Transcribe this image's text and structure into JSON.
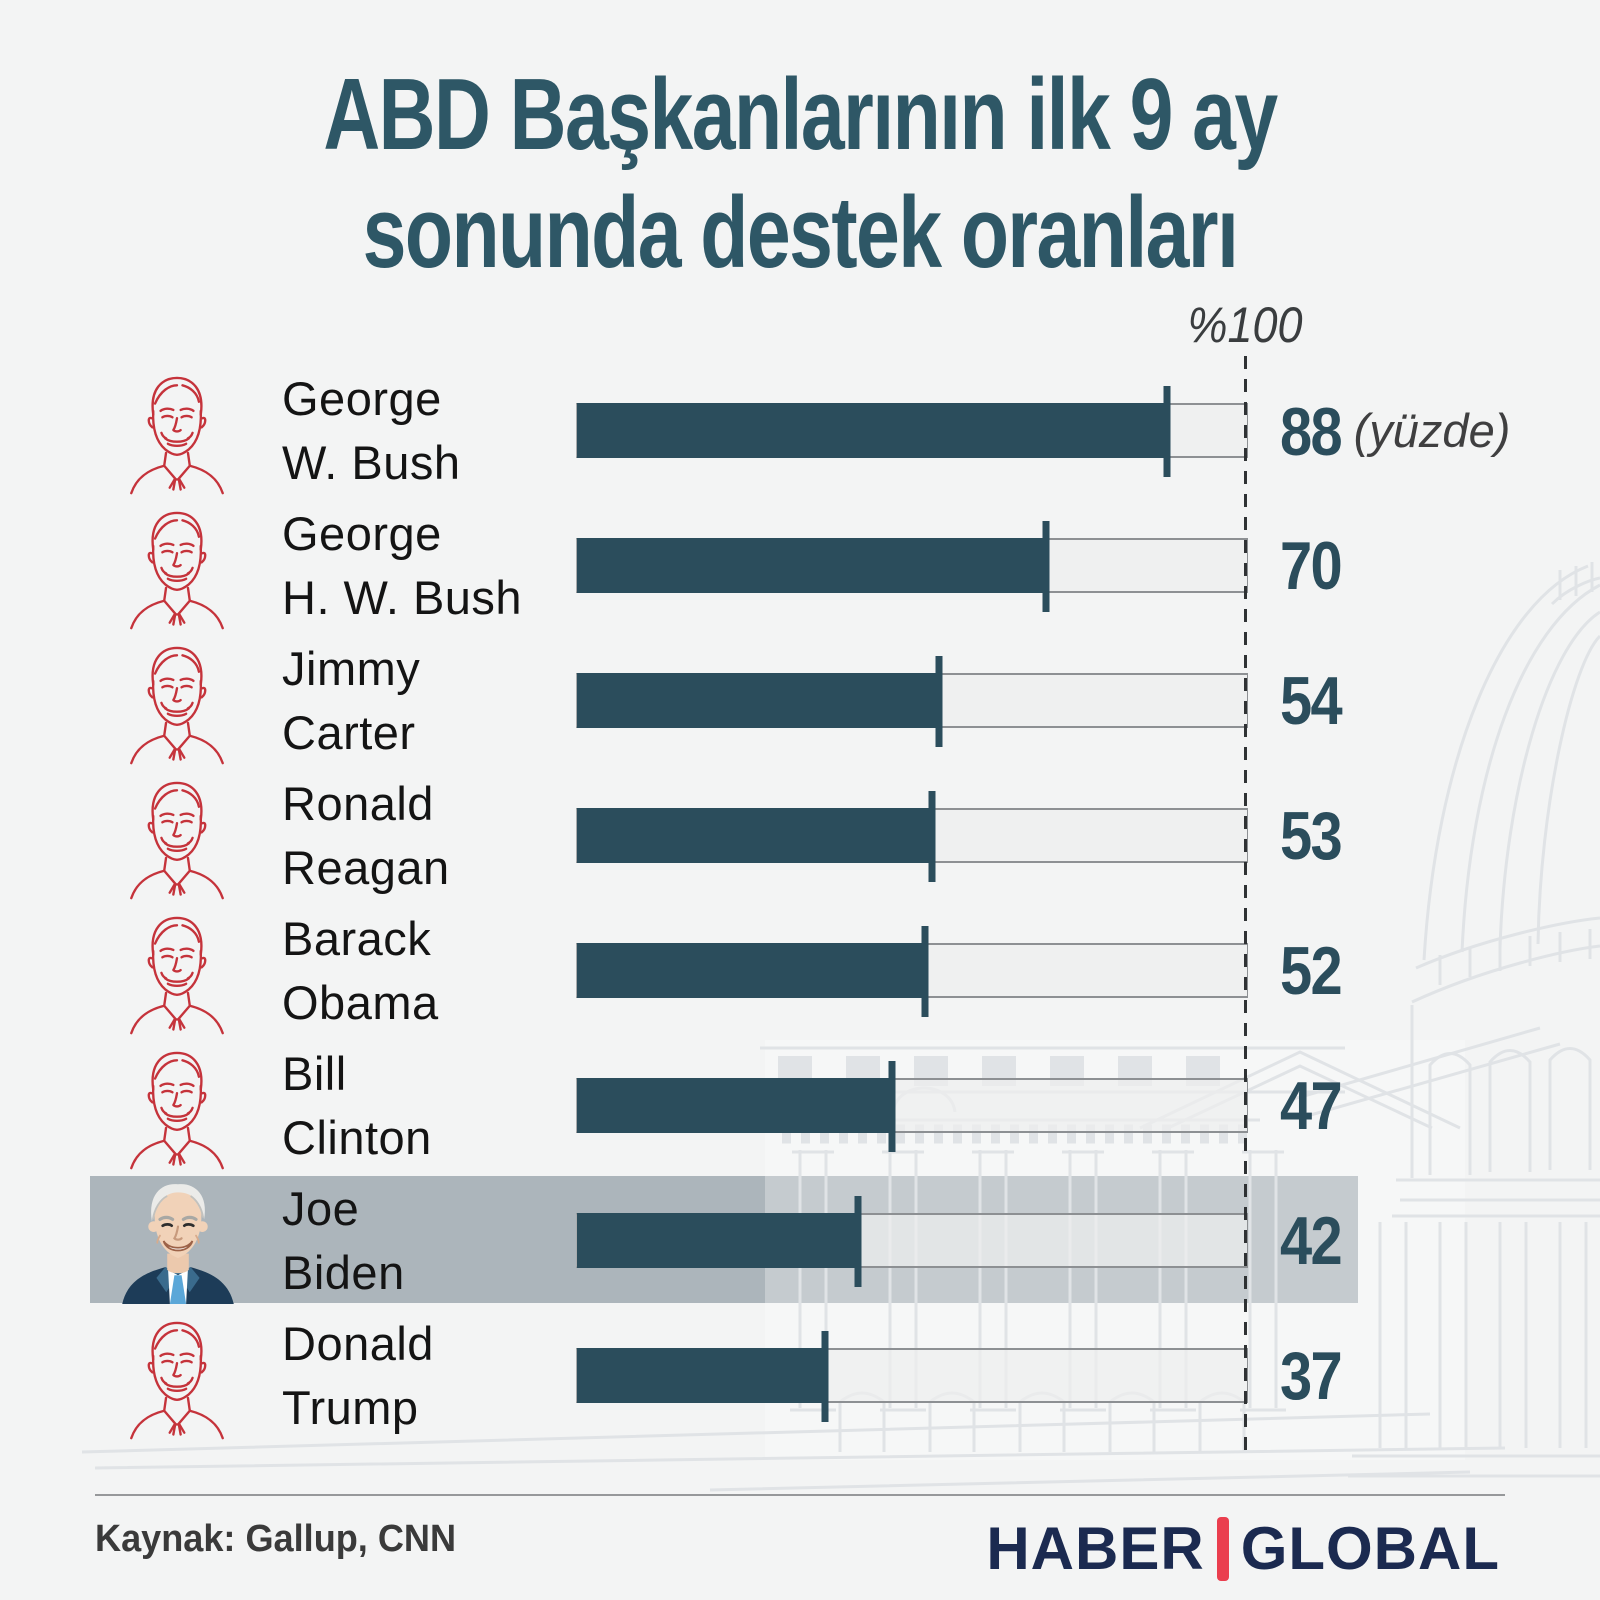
{
  "title": {
    "line1": "ABD Başkanlarının ilk 9 ay",
    "line2": "sonunda destek oranları"
  },
  "axis": {
    "max_label": "%100",
    "unit_label": "(yüzde)"
  },
  "chart_data": {
    "type": "bar",
    "orientation": "horizontal",
    "title": "ABD Başkanlarının ilk 9 ay sonunda destek oranları",
    "categories": [
      "George W. Bush",
      "George H. W. Bush",
      "Jimmy Carter",
      "Ronald Reagan",
      "Barack Obama",
      "Bill Clinton",
      "Joe Biden",
      "Donald Trump"
    ],
    "values": [
      88,
      70,
      54,
      53,
      52,
      47,
      42,
      37
    ],
    "xlim": [
      0,
      100
    ],
    "axis_marker": "%100",
    "unit_note": "(yüzde)",
    "highlighted_category": "Joe Biden",
    "grid": false,
    "legend": false
  },
  "presidents": [
    {
      "line1": "George",
      "line2": "W. Bush",
      "value": 88,
      "highlighted": false
    },
    {
      "line1": "George",
      "line2": "H. W. Bush",
      "value": 70,
      "highlighted": false
    },
    {
      "line1": "Jimmy",
      "line2": "Carter",
      "value": 54,
      "highlighted": false
    },
    {
      "line1": "Ronald",
      "line2": "Reagan",
      "value": 53,
      "highlighted": false
    },
    {
      "line1": "Barack",
      "line2": "Obama",
      "value": 52,
      "highlighted": false
    },
    {
      "line1": "Bill",
      "line2": "Clinton",
      "value": 47,
      "highlighted": false
    },
    {
      "line1": "Joe",
      "line2": "Biden",
      "value": 42,
      "highlighted": true
    },
    {
      "line1": "Donald",
      "line2": "Trump",
      "value": 37,
      "highlighted": false
    }
  ],
  "footer": {
    "source": "Kaynak: Gallup, CNN",
    "logo_part1": "HABER",
    "logo_part2": "GLOBAL"
  },
  "colors": {
    "background": "#f3f4f4",
    "bar": "#2b4d5c",
    "track": "#ededee",
    "track_border": "#8d9093",
    "title_text": "#2e5766",
    "name_text": "#141414",
    "value_text": "#2b4d5c",
    "axis_text": "#3a3d3f",
    "highlight_band": "#b7bfc4",
    "portrait_line": "#c5333b",
    "dashed_line": "#2f3234",
    "logo_navy": "#1b2a50",
    "logo_red": "#ea3e4e",
    "watermark_line": "#e0e3e6"
  }
}
